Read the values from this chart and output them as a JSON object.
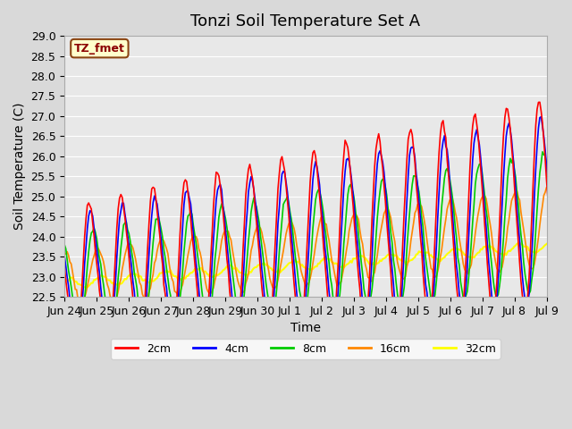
{
  "title": "Tonzi Soil Temperature Set A",
  "xlabel": "Time",
  "ylabel": "Soil Temperature (C)",
  "ylim": [
    22.5,
    29.0
  ],
  "annotation": "TZ_fmet",
  "fig_bg_color": "#d9d9d9",
  "plot_bg_color": "#e8e8e8",
  "line_colors": {
    "2cm": "#ff0000",
    "4cm": "#0000ff",
    "8cm": "#00cc00",
    "16cm": "#ff8800",
    "32cm": "#ffff00"
  },
  "xtick_labels": [
    "Jun 24",
    "Jun 25",
    "Jun 26",
    "Jun 27",
    "Jun 28",
    "Jun 29",
    "Jun 30",
    "Jul 1",
    "Jul 2",
    "Jul 3",
    "Jul 4",
    "Jul 5",
    "Jul 6",
    "Jul 7",
    "Jul 8",
    "Jul 9"
  ],
  "ytick_values": [
    22.5,
    23.0,
    23.5,
    24.0,
    24.5,
    25.0,
    25.5,
    26.0,
    26.5,
    27.0,
    27.5,
    28.0,
    28.5,
    29.0
  ],
  "title_fontsize": 13,
  "axis_label_fontsize": 10,
  "tick_fontsize": 9
}
